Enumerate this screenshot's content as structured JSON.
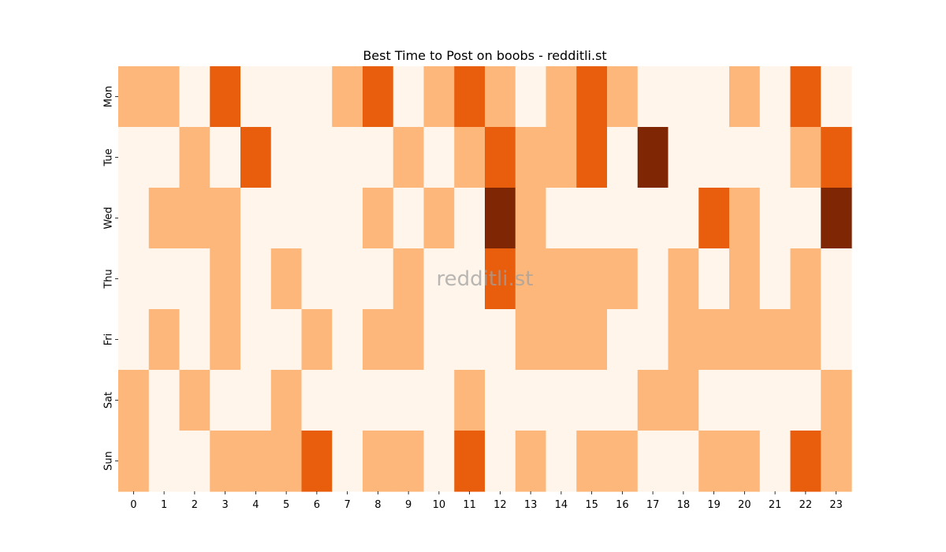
{
  "chart_data": {
    "type": "heatmap",
    "title": "Best Time to Post on boobs - redditli.st",
    "watermark": "redditli.st",
    "x_categories": [
      "0",
      "1",
      "2",
      "3",
      "4",
      "5",
      "6",
      "7",
      "8",
      "9",
      "10",
      "11",
      "12",
      "13",
      "14",
      "15",
      "16",
      "17",
      "18",
      "19",
      "20",
      "21",
      "22",
      "23"
    ],
    "y_categories": [
      "Mon",
      "Tue",
      "Wed",
      "Thu",
      "Fri",
      "Sat",
      "Sun"
    ],
    "levels": 4,
    "level_colors": [
      "#fff5eb",
      "#fdb77a",
      "#e95e0d",
      "#7f2704"
    ],
    "values": [
      [
        1,
        1,
        0,
        2,
        0,
        0,
        0,
        1,
        2,
        0,
        1,
        2,
        1,
        0,
        1,
        2,
        1,
        0,
        0,
        0,
        1,
        0,
        2,
        0
      ],
      [
        0,
        0,
        1,
        0,
        2,
        0,
        0,
        0,
        0,
        1,
        0,
        1,
        2,
        1,
        1,
        2,
        0,
        3,
        0,
        0,
        0,
        0,
        1,
        2
      ],
      [
        0,
        1,
        1,
        1,
        0,
        0,
        0,
        0,
        1,
        0,
        1,
        0,
        3,
        1,
        0,
        0,
        0,
        0,
        0,
        2,
        1,
        0,
        0,
        3
      ],
      [
        0,
        0,
        0,
        1,
        0,
        1,
        0,
        0,
        0,
        1,
        0,
        0,
        2,
        1,
        1,
        1,
        1,
        0,
        1,
        0,
        1,
        0,
        1,
        0
      ],
      [
        0,
        1,
        0,
        1,
        0,
        0,
        1,
        0,
        1,
        1,
        0,
        0,
        0,
        1,
        1,
        1,
        0,
        0,
        1,
        1,
        1,
        1,
        1,
        0
      ],
      [
        1,
        0,
        1,
        0,
        0,
        1,
        0,
        0,
        0,
        0,
        0,
        1,
        0,
        0,
        0,
        0,
        0,
        1,
        1,
        0,
        0,
        0,
        0,
        1
      ],
      [
        1,
        0,
        0,
        1,
        1,
        1,
        2,
        0,
        1,
        1,
        0,
        2,
        0,
        1,
        0,
        1,
        1,
        0,
        0,
        1,
        1,
        0,
        2,
        1
      ]
    ],
    "colorbar": false,
    "grid": false
  }
}
